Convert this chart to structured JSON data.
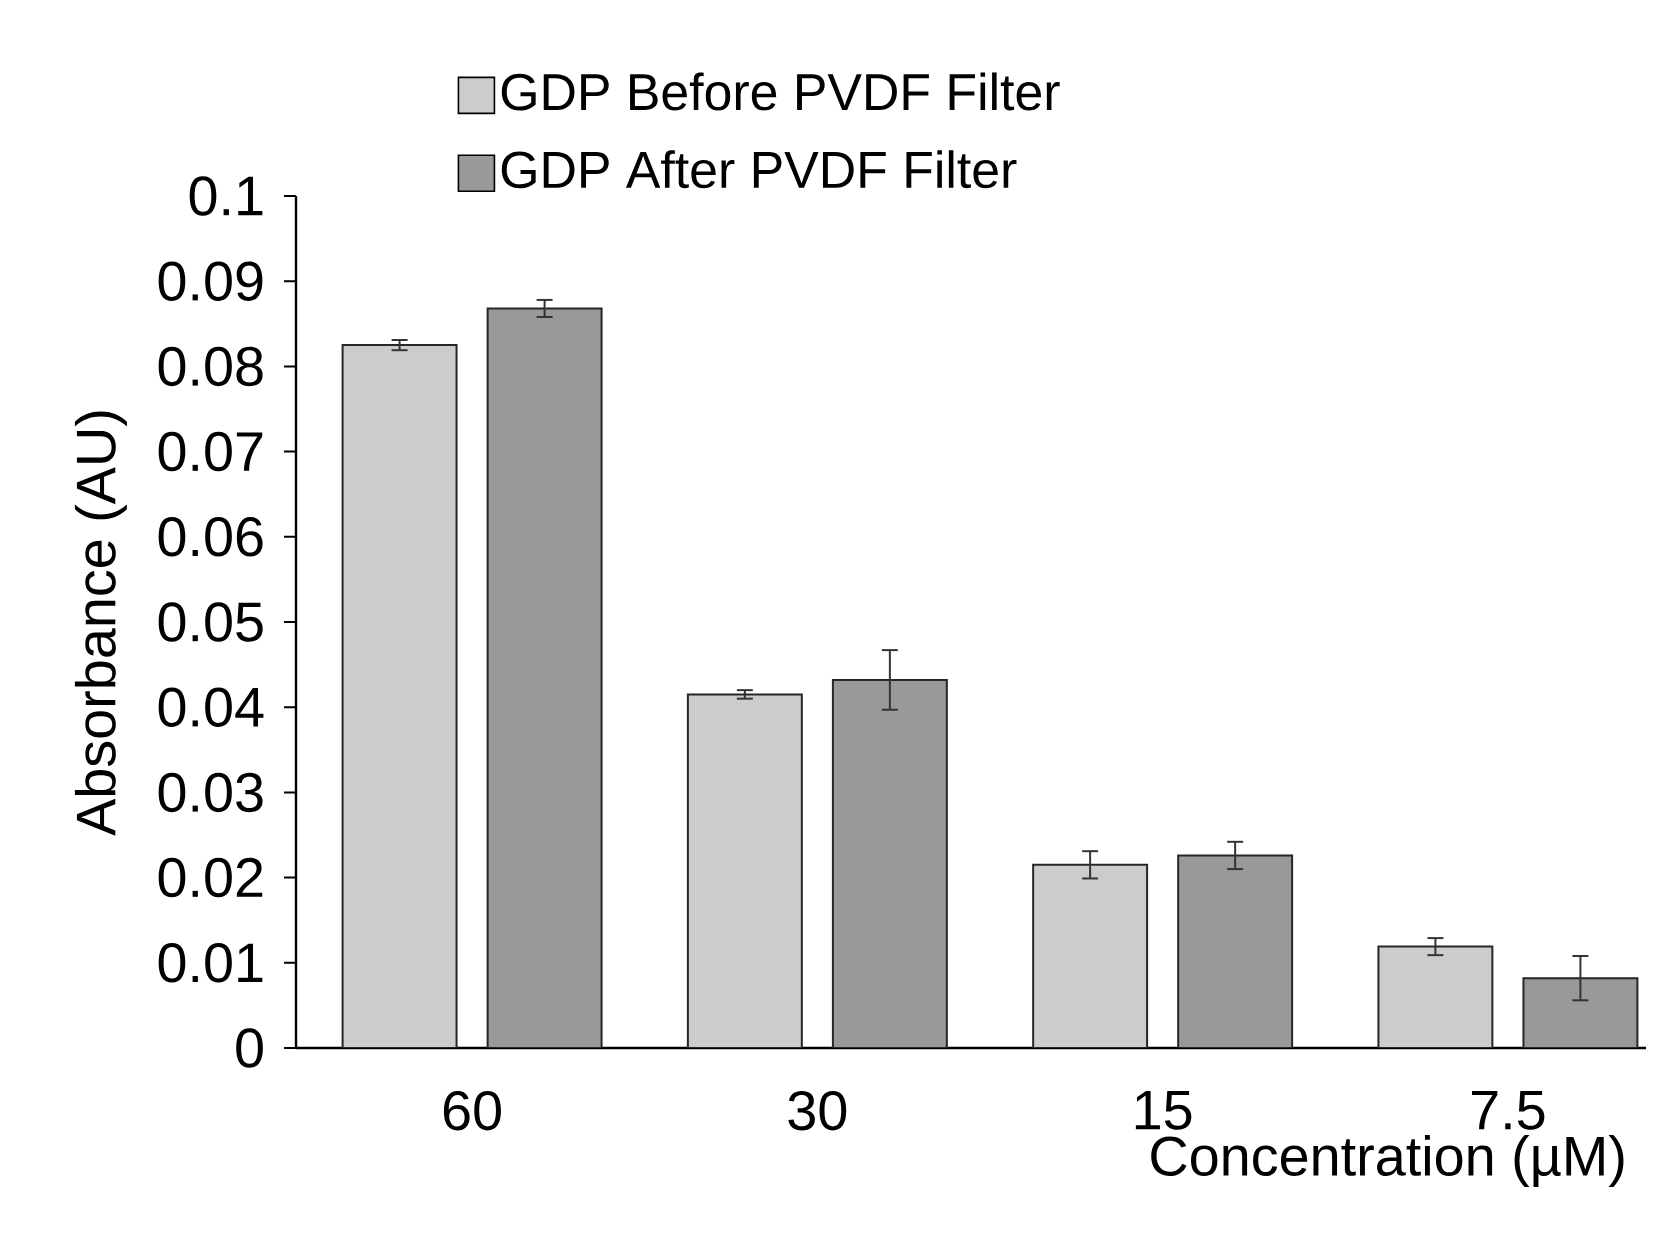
{
  "chart_data": {
    "type": "bar",
    "xlabel": "Concentration (µM)",
    "ylabel": "Absorbance (AU)",
    "categories": [
      "60",
      "30",
      "15",
      "7.5"
    ],
    "series": [
      {
        "name": "GDP Before PVDF Filter",
        "color": "#cccccc",
        "values": [
          0.0825,
          0.0415,
          0.0215,
          0.0119
        ],
        "errors": [
          0.0006,
          0.0005,
          0.0016,
          0.001
        ]
      },
      {
        "name": "GDP After PVDF Filter",
        "color": "#999999",
        "values": [
          0.0868,
          0.0432,
          0.0226,
          0.0082
        ],
        "errors": [
          0.001,
          0.0035,
          0.0016,
          0.0026
        ]
      }
    ],
    "ylim": [
      0,
      0.1
    ],
    "yticks": [
      0,
      0.01,
      0.02,
      0.03,
      0.04,
      0.05,
      0.06,
      0.07,
      0.08,
      0.09,
      0.1
    ],
    "grid": false,
    "legend": "top"
  }
}
